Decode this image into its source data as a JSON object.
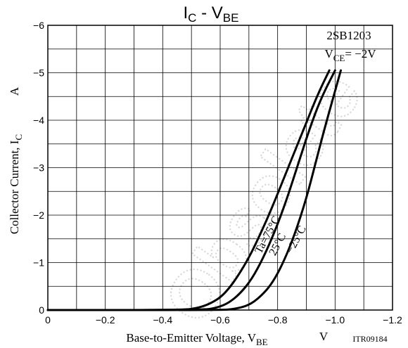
{
  "chart_data": {
    "type": "line",
    "title": {
      "base": "I",
      "sub": "C",
      "dash": " - ",
      "base2": "V",
      "sub2": "BE"
    },
    "device": "2SB1203",
    "condition": {
      "base": "V",
      "sub": "CE",
      "value": "= −2V"
    },
    "xlabel": {
      "text": "Base-to-Emitter Voltage, V",
      "sub": "BE",
      "unit": "V"
    },
    "ylabel": {
      "text": "Collector Current, I",
      "sub": "C",
      "unit": "A"
    },
    "code": "ITR09184",
    "watermark": "Obsolete",
    "xlim": [
      0,
      -1.2
    ],
    "ylim": [
      0,
      -6
    ],
    "x_ticks": [
      "0",
      "−0.2",
      "−0.4",
      "−0.6",
      "−0.8",
      "−1.0",
      "−1.2"
    ],
    "x_tick_values": [
      0,
      -0.2,
      -0.4,
      -0.6,
      -0.8,
      -1.0,
      -1.2
    ],
    "y_ticks": [
      "0",
      "−1",
      "−2",
      "−3",
      "−4",
      "−5",
      "−6"
    ],
    "y_tick_values": [
      0,
      -1,
      -2,
      -3,
      -4,
      -5,
      -6
    ],
    "grid": true,
    "series": [
      {
        "name": "Ta=75°C",
        "points": [
          [
            0,
            0
          ],
          [
            -0.47,
            0
          ],
          [
            -0.52,
            -0.04
          ],
          [
            -0.56,
            -0.12
          ],
          [
            -0.6,
            -0.26
          ],
          [
            -0.63,
            -0.45
          ],
          [
            -0.66,
            -0.7
          ],
          [
            -0.7,
            -1.1
          ],
          [
            -0.74,
            -1.6
          ],
          [
            -0.78,
            -2.15
          ],
          [
            -0.82,
            -2.75
          ],
          [
            -0.86,
            -3.35
          ],
          [
            -0.9,
            -3.95
          ],
          [
            -0.94,
            -4.55
          ],
          [
            -0.98,
            -5.05
          ]
        ]
      },
      {
        "name": "25°C",
        "points": [
          [
            0,
            0
          ],
          [
            -0.54,
            0
          ],
          [
            -0.59,
            -0.05
          ],
          [
            -0.63,
            -0.15
          ],
          [
            -0.67,
            -0.35
          ],
          [
            -0.71,
            -0.65
          ],
          [
            -0.75,
            -1.1
          ],
          [
            -0.79,
            -1.65
          ],
          [
            -0.83,
            -2.3
          ],
          [
            -0.87,
            -3.05
          ],
          [
            -0.91,
            -3.8
          ],
          [
            -0.95,
            -4.45
          ],
          [
            -1.0,
            -5.05
          ]
        ]
      },
      {
        "name": "−25°C",
        "points": [
          [
            0,
            0
          ],
          [
            -0.6,
            0
          ],
          [
            -0.65,
            -0.02
          ],
          [
            -0.7,
            -0.1
          ],
          [
            -0.74,
            -0.28
          ],
          [
            -0.78,
            -0.55
          ],
          [
            -0.82,
            -1.0
          ],
          [
            -0.86,
            -1.6
          ],
          [
            -0.9,
            -2.35
          ],
          [
            -0.93,
            -3.05
          ],
          [
            -0.96,
            -3.75
          ],
          [
            -0.99,
            -4.4
          ],
          [
            -1.02,
            -5.05
          ]
        ]
      }
    ],
    "curve_labels": [
      {
        "text": "Ta=75°C",
        "series": 0,
        "at": [
          -0.775,
          -1.55
        ],
        "angle": -62
      },
      {
        "text": "25°C",
        "series": 1,
        "at": [
          -0.81,
          -1.35
        ],
        "angle": -62
      },
      {
        "text": "−25°C",
        "series": 2,
        "at": [
          -0.875,
          -1.45
        ],
        "angle": -62
      }
    ]
  }
}
